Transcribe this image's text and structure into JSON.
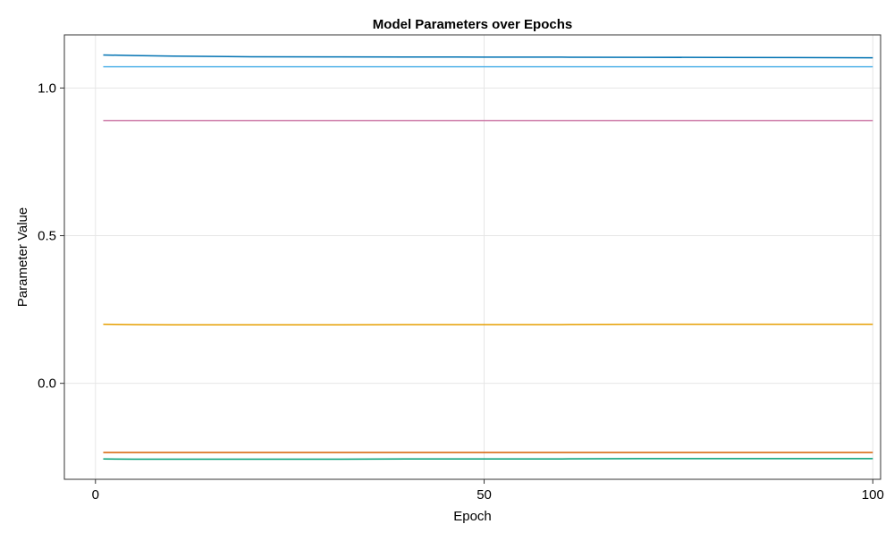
{
  "chart_data": {
    "type": "line",
    "title": "Model Parameters over Epochs",
    "xlabel": "Epoch",
    "ylabel": "Parameter Value",
    "xlim": [
      -4,
      101
    ],
    "ylim": [
      -0.325,
      1.18
    ],
    "xticks": [
      0,
      50,
      100
    ],
    "xtick_labels": [
      "0",
      "50",
      "100"
    ],
    "yticks": [
      0.0,
      0.5,
      1.0
    ],
    "ytick_labels": [
      "0.0",
      "0.5",
      "1.0"
    ],
    "grid": true,
    "legend": "none",
    "x": [
      1,
      5,
      10,
      20,
      30,
      40,
      50,
      60,
      70,
      80,
      90,
      100
    ],
    "series": [
      {
        "color": "#0072B2",
        "values": [
          1.112,
          1.11,
          1.108,
          1.106,
          1.1055,
          1.105,
          1.1048,
          1.1045,
          1.104,
          1.1035,
          1.103,
          1.1025
        ]
      },
      {
        "color": "#56B4E9",
        "values": [
          1.072,
          1.072,
          1.072,
          1.072,
          1.072,
          1.072,
          1.072,
          1.072,
          1.072,
          1.072,
          1.072,
          1.072
        ]
      },
      {
        "color": "#CC79A7",
        "values": [
          0.89,
          0.89,
          0.89,
          0.89,
          0.89,
          0.89,
          0.89,
          0.89,
          0.89,
          0.89,
          0.89,
          0.89
        ]
      },
      {
        "color": "#E69F00",
        "values": [
          0.2,
          0.199,
          0.198,
          0.198,
          0.198,
          0.199,
          0.199,
          0.199,
          0.2,
          0.2,
          0.2,
          0.2
        ]
      },
      {
        "color": "#D55E00",
        "values": [
          -0.234,
          -0.234,
          -0.234,
          -0.234,
          -0.234,
          -0.234,
          -0.234,
          -0.234,
          -0.234,
          -0.234,
          -0.234,
          -0.234
        ]
      },
      {
        "color": "#009E73",
        "values": [
          -0.256,
          -0.257,
          -0.257,
          -0.257,
          -0.257,
          -0.256,
          -0.256,
          -0.256,
          -0.255,
          -0.255,
          -0.255,
          -0.255
        ]
      }
    ]
  }
}
